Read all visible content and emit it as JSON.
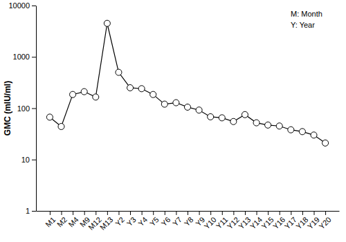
{
  "chart_data": {
    "type": "line",
    "y_label": "GMC (mIU/ml)",
    "annotations": [
      "M: Month",
      "Y: Year"
    ],
    "categories": [
      "M1",
      "M2",
      "M4",
      "M9",
      "M12",
      "M13",
      "Y2",
      "Y3",
      "Y4",
      "Y5",
      "Y6",
      "Y7",
      "Y8",
      "Y9",
      "Y10",
      "Y11",
      "Y12",
      "Y13",
      "Y14",
      "Y15",
      "Y16",
      "Y17",
      "Y18",
      "Y19",
      "Y20"
    ],
    "values": [
      67,
      44,
      185,
      210,
      165,
      4500,
      500,
      250,
      240,
      185,
      120,
      128,
      105,
      92,
      68,
      65,
      55,
      75,
      52,
      47,
      45,
      38,
      35,
      30,
      21
    ],
    "color": "#000000",
    "marker": "circle",
    "line_style": "solid",
    "log": "y",
    "grid": false,
    "ylim": [
      1,
      10000
    ],
    "yticks": [
      1,
      10,
      100,
      1000,
      10000
    ]
  }
}
